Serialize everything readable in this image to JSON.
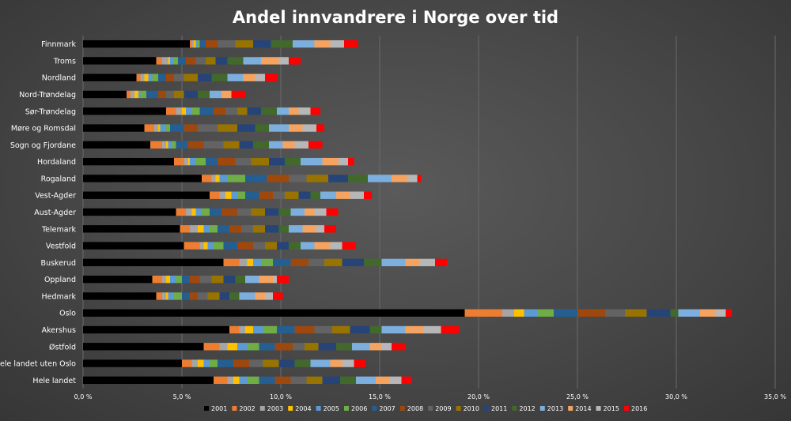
{
  "chart_data": {
    "type": "bar",
    "orientation": "horizontal",
    "stacked": true,
    "title": "Andel innvandrere i Norge over tid",
    "xlim": [
      0,
      35
    ],
    "x_ticks": [
      "0,0 %",
      "5,0 %",
      "10,0 %",
      "15,0 %",
      "20,0 %",
      "25,0 %",
      "30,0 %",
      "35,0 %"
    ],
    "grid": true,
    "legend_position": "bottom",
    "categories": [
      "Finnmark",
      "Troms",
      "Nordland",
      "Nord-Trøndelag",
      "Sør-Trøndelag",
      "Møre og Romsdal",
      "Sogn og Fjordane",
      "Hordaland",
      "Rogaland",
      "Vest-Agder",
      "Aust-Agder",
      "Telemark",
      "Vestfold",
      "Buskerud",
      "Oppland",
      "Hedmark",
      "Oslo",
      "Akershus",
      "Østfold",
      "Hele landet uten Oslo",
      "Hele landet"
    ],
    "series": [
      {
        "name": "2001",
        "color": "#000000",
        "values": [
          5.4,
          3.7,
          2.7,
          2.2,
          4.2,
          3.1,
          3.4,
          4.6,
          6.0,
          6.4,
          4.7,
          4.9,
          5.1,
          7.1,
          3.5,
          3.7,
          19.3,
          7.4,
          6.1,
          5.0,
          6.6
        ]
      },
      {
        "name": "2002",
        "color": "#ed7d31",
        "values": [
          0.1,
          0.3,
          0.2,
          0.2,
          0.5,
          0.5,
          0.6,
          0.5,
          0.5,
          0.5,
          0.5,
          0.5,
          0.8,
          0.8,
          0.5,
          0.3,
          1.9,
          0.5,
          0.8,
          0.5,
          0.7
        ]
      },
      {
        "name": "2003",
        "color": "#a5a5a5",
        "values": [
          0.1,
          0.3,
          0.2,
          0.2,
          0.3,
          0.2,
          0.2,
          0.2,
          0.2,
          0.3,
          0.3,
          0.4,
          0.2,
          0.4,
          0.2,
          0.2,
          0.6,
          0.3,
          0.4,
          0.3,
          0.3
        ]
      },
      {
        "name": "2004",
        "color": "#ffc000",
        "values": [
          0.1,
          0.1,
          0.2,
          0.2,
          0.2,
          0.1,
          0.1,
          0.1,
          0.2,
          0.3,
          0.2,
          0.3,
          0.2,
          0.3,
          0.2,
          0.1,
          0.5,
          0.4,
          0.5,
          0.3,
          0.3
        ]
      },
      {
        "name": "2005",
        "color": "#5b9bd5",
        "values": [
          0.1,
          0.2,
          0.2,
          0.1,
          0.3,
          0.3,
          0.2,
          0.3,
          0.4,
          0.3,
          0.3,
          0.3,
          0.3,
          0.4,
          0.3,
          0.3,
          0.7,
          0.5,
          0.5,
          0.3,
          0.4
        ]
      },
      {
        "name": "2006",
        "color": "#70ad47",
        "values": [
          0.1,
          0.2,
          0.3,
          0.3,
          0.4,
          0.2,
          0.2,
          0.5,
          0.9,
          0.4,
          0.4,
          0.4,
          0.5,
          0.6,
          0.3,
          0.4,
          0.8,
          0.7,
          0.6,
          0.4,
          0.6
        ]
      },
      {
        "name": "2007",
        "color": "#255e91",
        "values": [
          0.3,
          0.4,
          0.4,
          0.6,
          0.7,
          0.7,
          0.6,
          0.6,
          1.1,
          0.7,
          0.6,
          0.6,
          0.7,
          0.9,
          0.4,
          0.4,
          1.2,
          0.9,
          0.8,
          0.8,
          0.8
        ]
      },
      {
        "name": "2008",
        "color": "#9e480e",
        "values": [
          0.6,
          0.5,
          0.4,
          0.4,
          0.6,
          0.7,
          0.8,
          0.9,
          1.1,
          0.7,
          0.8,
          0.6,
          0.8,
          0.9,
          0.5,
          0.4,
          1.4,
          1.0,
          0.9,
          0.8,
          0.8
        ]
      },
      {
        "name": "2009",
        "color": "#636363",
        "values": [
          0.9,
          0.5,
          0.5,
          0.4,
          0.6,
          1.0,
          1.0,
          0.8,
          0.9,
          0.6,
          0.7,
          0.6,
          0.6,
          0.8,
          0.6,
          0.5,
          1.0,
          0.9,
          0.6,
          0.7,
          0.8
        ]
      },
      {
        "name": "2010",
        "color": "#997300",
        "values": [
          0.9,
          0.5,
          0.7,
          0.5,
          0.5,
          1.0,
          0.8,
          0.9,
          1.1,
          0.7,
          0.7,
          0.6,
          0.6,
          0.9,
          0.6,
          0.6,
          1.1,
          0.9,
          0.7,
          0.8,
          0.8
        ]
      },
      {
        "name": "2011",
        "color": "#264478",
        "values": [
          0.9,
          0.6,
          0.7,
          0.7,
          0.7,
          0.9,
          0.7,
          0.8,
          1.0,
          0.6,
          0.7,
          0.7,
          0.6,
          1.1,
          0.6,
          0.5,
          1.2,
          1.0,
          0.9,
          0.8,
          0.9
        ]
      },
      {
        "name": "2012",
        "color": "#43682b",
        "values": [
          1.1,
          0.8,
          0.8,
          0.6,
          0.8,
          0.7,
          0.8,
          0.8,
          1.0,
          0.5,
          0.6,
          0.5,
          0.6,
          0.9,
          0.5,
          0.5,
          0.4,
          0.6,
          0.8,
          0.8,
          0.8
        ]
      },
      {
        "name": "2013",
        "color": "#7cafdd",
        "values": [
          1.1,
          0.9,
          0.8,
          0.6,
          0.6,
          1.0,
          0.7,
          1.1,
          1.2,
          0.8,
          0.7,
          0.7,
          0.7,
          1.2,
          0.7,
          0.8,
          1.1,
          1.2,
          0.9,
          1.0,
          1.0
        ]
      },
      {
        "name": "2014",
        "color": "#f4a460",
        "values": [
          0.8,
          0.9,
          0.6,
          0.5,
          0.5,
          0.7,
          0.6,
          0.8,
          0.8,
          0.7,
          0.5,
          0.7,
          0.8,
          0.7,
          0.7,
          0.5,
          0.8,
          0.9,
          0.6,
          0.6,
          0.7
        ]
      },
      {
        "name": "2015",
        "color": "#b7b7b7",
        "values": [
          0.7,
          0.5,
          0.5,
          0.0,
          0.6,
          0.7,
          0.7,
          0.5,
          0.5,
          0.7,
          0.6,
          0.4,
          0.6,
          0.8,
          0.2,
          0.4,
          0.5,
          0.9,
          0.5,
          0.6,
          0.6
        ]
      },
      {
        "name": "2016",
        "color": "#ff0000",
        "values": [
          0.7,
          0.6,
          0.6,
          0.7,
          0.5,
          0.4,
          0.7,
          0.3,
          0.2,
          0.4,
          0.6,
          0.6,
          0.7,
          0.6,
          0.6,
          0.5,
          0.3,
          0.9,
          0.7,
          0.6,
          0.5
        ]
      }
    ]
  }
}
